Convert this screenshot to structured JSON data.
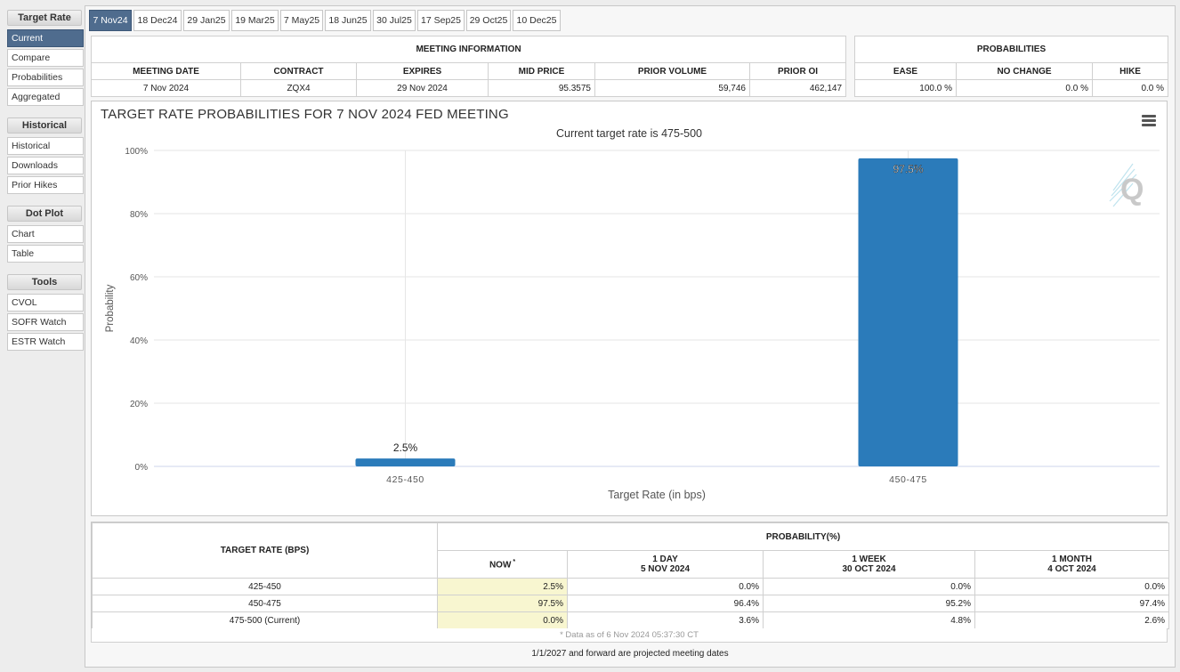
{
  "sidebar": {
    "sections": [
      {
        "title": "Target Rate",
        "items": [
          "Current",
          "Compare",
          "Probabilities",
          "Aggregated"
        ],
        "active": 0
      },
      {
        "title": "Historical",
        "items": [
          "Historical",
          "Downloads",
          "Prior Hikes"
        ],
        "active": -1
      },
      {
        "title": "Dot Plot",
        "items": [
          "Chart",
          "Table"
        ],
        "active": -1
      },
      {
        "title": "Tools",
        "items": [
          "CVOL",
          "SOFR Watch",
          "ESTR Watch"
        ],
        "active": -1
      }
    ]
  },
  "tabs": [
    "7 Nov24",
    "18 Dec24",
    "29 Jan25",
    "19 Mar25",
    "7 May25",
    "18 Jun25",
    "30 Jul25",
    "17 Sep25",
    "29 Oct25",
    "10 Dec25"
  ],
  "meeting_info": {
    "header": "MEETING INFORMATION",
    "columns": [
      "MEETING DATE",
      "CONTRACT",
      "EXPIRES",
      "MID PRICE",
      "PRIOR VOLUME",
      "PRIOR OI"
    ],
    "values": [
      "7 Nov 2024",
      "ZQX4",
      "29 Nov 2024",
      "95.3575",
      "59,746",
      "462,147"
    ]
  },
  "probabilities": {
    "header": "PROBABILITIES",
    "columns": [
      "EASE",
      "NO CHANGE",
      "HIKE"
    ],
    "values": [
      "100.0 %",
      "0.0 %",
      "0.0 %"
    ]
  },
  "chart": {
    "title": "TARGET RATE PROBABILITIES FOR 7 NOV 2024 FED MEETING",
    "subtitle": "Current target rate is 475-500"
  },
  "chart_data": {
    "type": "bar",
    "categories": [
      "425-450",
      "450-475"
    ],
    "values": [
      2.5,
      97.5
    ],
    "data_labels": [
      "2.5%",
      "97.5%"
    ],
    "xlabel": "Target Rate (in bps)",
    "ylabel": "Probability",
    "ylim": [
      0,
      100
    ],
    "yticks": [
      "0%",
      "20%",
      "40%",
      "60%",
      "80%",
      "100%"
    ],
    "ytick_values": [
      0,
      20,
      40,
      60,
      80,
      100
    ],
    "bar_color": "#2b7bba",
    "grid": true
  },
  "prob_table": {
    "rate_header": "TARGET RATE (BPS)",
    "group_header": "PROBABILITY(%)",
    "columns": [
      {
        "line1": "NOW",
        "line2": ""
      },
      {
        "line1": "1 DAY",
        "line2": "5 NOV 2024"
      },
      {
        "line1": "1 WEEK",
        "line2": "30 OCT 2024"
      },
      {
        "line1": "1 MONTH",
        "line2": "4 OCT 2024"
      }
    ],
    "rows": [
      {
        "rate": "425-450",
        "values": [
          "2.5%",
          "0.0%",
          "0.0%",
          "0.0%"
        ]
      },
      {
        "rate": "450-475",
        "values": [
          "97.5%",
          "96.4%",
          "95.2%",
          "97.4%"
        ]
      },
      {
        "rate": "475-500 (Current)",
        "values": [
          "0.0%",
          "3.6%",
          "4.8%",
          "2.6%"
        ]
      }
    ],
    "note": "* Data as of 6 Nov 2024 05:37:30 CT"
  },
  "footer": "1/1/2027 and forward are projected meeting dates"
}
